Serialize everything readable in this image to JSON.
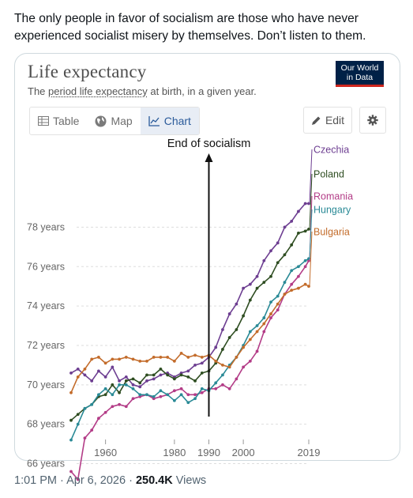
{
  "tweet": {
    "text": "The only people in favor of socialism are those who have never experienced socialist misery by themselves. Don’t listen to them.",
    "timestamp": "1:01 PM · Apr 6, 2026 · ",
    "views_count": "250.4K",
    "views_label": " Views"
  },
  "card": {
    "title": "Life expectancy",
    "subtitle_pre": "The ",
    "subtitle_link": "period life expectancy",
    "subtitle_post": " at birth, in a given year.",
    "logo_line1": "Our World",
    "logo_line2": "in Data",
    "tabs": [
      {
        "label": "Table",
        "icon": "table-icon"
      },
      {
        "label": "Map",
        "icon": "globe-icon"
      },
      {
        "label": "Chart",
        "icon": "line-chart-icon"
      }
    ],
    "edit_label": "Edit",
    "settings_icon": "gear-icon"
  },
  "colors": {
    "Czechia": "#6d3e91",
    "Poland": "#2e4d21",
    "Romania": "#b33c87",
    "Hungary": "#2a8a96",
    "Bulgaria": "#c36c2b"
  },
  "chart_data": {
    "type": "line",
    "annotation": "End of socialism",
    "annotation_x": 1990,
    "x_ticks": [
      1960,
      1980,
      1990,
      2000,
      2019
    ],
    "y_ticks": [
      66,
      68,
      70,
      72,
      74,
      76,
      78
    ],
    "y_tick_labels": [
      "66 years",
      "68 years",
      "70 years",
      "72 years",
      "74 years",
      "76 years",
      "78 years"
    ],
    "xlim": [
      1950,
      2019
    ],
    "ylim": [
      65.5,
      79.5
    ],
    "grid": true,
    "legend": "right-end-labels",
    "x": [
      1950,
      1952,
      1954,
      1956,
      1958,
      1960,
      1962,
      1964,
      1966,
      1968,
      1970,
      1972,
      1974,
      1976,
      1978,
      1980,
      1982,
      1984,
      1986,
      1988,
      1990,
      1992,
      1994,
      1996,
      1998,
      2000,
      2002,
      2004,
      2006,
      2008,
      2010,
      2012,
      2014,
      2016,
      2018,
      2019
    ],
    "series": [
      {
        "name": "Czechia",
        "values": [
          70.6,
          70.8,
          70.5,
          70.2,
          70.7,
          70.4,
          70.9,
          70.2,
          70.4,
          70.0,
          69.9,
          70.2,
          70.3,
          70.5,
          70.6,
          70.4,
          70.6,
          70.7,
          71.0,
          71.1,
          71.4,
          71.9,
          72.8,
          73.6,
          74.1,
          74.9,
          75.1,
          75.5,
          76.3,
          76.8,
          77.2,
          78.0,
          78.3,
          78.8,
          79.2,
          79.2
        ]
      },
      {
        "name": "Poland",
        "values": [
          68.2,
          68.5,
          68.8,
          69.0,
          69.4,
          69.5,
          70.0,
          69.6,
          70.2,
          70.3,
          70.1,
          70.5,
          70.5,
          70.8,
          70.5,
          70.3,
          70.5,
          70.4,
          70.2,
          70.6,
          70.7,
          71.1,
          71.8,
          72.4,
          72.8,
          73.5,
          74.3,
          74.9,
          75.2,
          75.5,
          76.2,
          76.6,
          77.1,
          77.7,
          77.8,
          77.9
        ]
      },
      {
        "name": "Romania",
        "values": [
          65.6,
          65.2,
          67.3,
          67.7,
          68.3,
          68.6,
          68.9,
          69.0,
          68.9,
          69.3,
          69.4,
          69.5,
          69.3,
          69.4,
          69.5,
          69.7,
          69.8,
          69.5,
          69.5,
          69.6,
          69.8,
          69.8,
          70.0,
          69.8,
          70.3,
          70.9,
          71.2,
          71.7,
          72.7,
          73.4,
          73.8,
          74.6,
          75.1,
          75.5,
          76.0,
          76.3
        ]
      },
      {
        "name": "Hungary",
        "values": [
          67.2,
          68.0,
          68.8,
          69.0,
          69.5,
          69.8,
          69.5,
          70.0,
          70.0,
          69.8,
          69.5,
          69.5,
          69.4,
          69.7,
          69.5,
          69.2,
          69.5,
          69.1,
          69.3,
          69.8,
          69.7,
          70.1,
          70.5,
          71.0,
          71.4,
          72.0,
          72.7,
          73.0,
          73.4,
          74.2,
          74.5,
          75.2,
          75.8,
          76.0,
          76.3,
          76.4
        ]
      },
      {
        "name": "Bulgaria",
        "values": [
          69.6,
          70.4,
          70.8,
          71.3,
          71.4,
          71.1,
          71.3,
          71.3,
          71.4,
          71.3,
          71.2,
          71.2,
          71.4,
          71.4,
          71.4,
          71.2,
          71.6,
          71.4,
          71.5,
          71.4,
          71.5,
          71.2,
          71.0,
          70.9,
          71.4,
          71.9,
          72.3,
          72.7,
          73.1,
          73.6,
          74.1,
          74.6,
          74.8,
          74.9,
          75.1,
          75.0
        ]
      }
    ]
  }
}
